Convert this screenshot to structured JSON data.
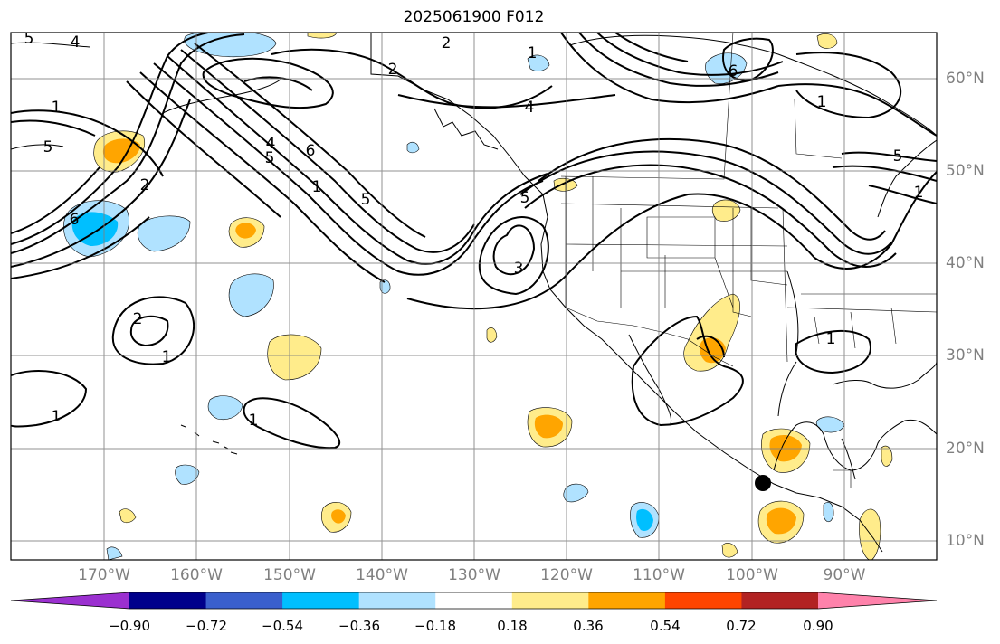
{
  "title": "2025061900 F012",
  "lon_labels": [
    "170°W",
    "160°W",
    "150°W",
    "140°W",
    "130°W",
    "120°W",
    "110°W",
    "100°W",
    "90°W"
  ],
  "lat_labels": [
    "60°N",
    "50°N",
    "40°N",
    "30°N",
    "20°N",
    "10°N"
  ],
  "colorbar": {
    "ticks": [
      "−0.90",
      "−0.72",
      "−0.54",
      "−0.36",
      "−0.18",
      "0.18",
      "0.36",
      "0.54",
      "0.72",
      "0.90"
    ],
    "colors": [
      "#9b30d0",
      "#00008b",
      "#3a5fcd",
      "#00bfff",
      "#b0e2ff",
      "#ffffff",
      "#ffec8b",
      "#ffa500",
      "#ff4500",
      "#b22222",
      "#ff82ab"
    ]
  },
  "contour_labels": [
    "5",
    "4",
    "1",
    "5",
    "2",
    "2",
    "1",
    "6",
    "4",
    "1",
    "4",
    "6",
    "5",
    "1",
    "5",
    "6",
    "2",
    "3",
    "5",
    "1",
    "2",
    "1",
    "1",
    "1",
    "1",
    "5"
  ],
  "colors": {
    "positive_fill": "#ffec8b",
    "positive_core": "#ffa500",
    "negative_fill": "#b0e2ff",
    "negative_core": "#00bfff",
    "contour": "#000000",
    "marker": "#000000"
  }
}
